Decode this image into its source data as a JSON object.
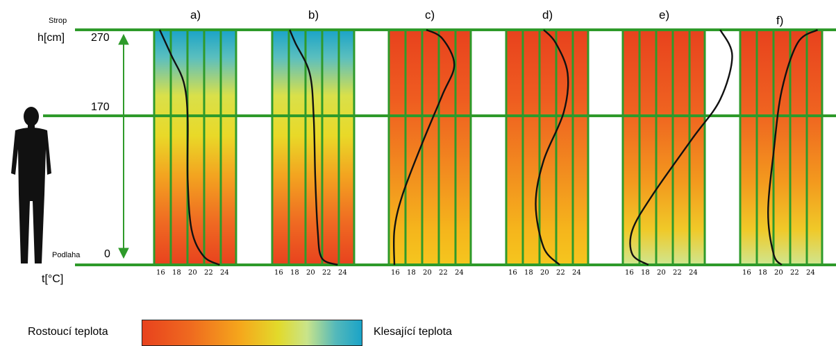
{
  "axis": {
    "ceiling_label": "Strop",
    "floor_label": "Podlaha",
    "height_label": "h[cm]",
    "temp_label": "t[°C]",
    "height_ticks": [
      "270",
      "170",
      "0"
    ]
  },
  "temp_ticks": [
    "16",
    "18",
    "20",
    "22",
    "24"
  ],
  "panels": [
    {
      "label": "a)",
      "gradient": "blue-top",
      "profile": [
        [
          23.5,
          0
        ],
        [
          21.5,
          10
        ],
        [
          20.0,
          40
        ],
        [
          19.5,
          100
        ],
        [
          19.5,
          170
        ],
        [
          19.0,
          210
        ],
        [
          17.5,
          240
        ],
        [
          16.0,
          270
        ]
      ]
    },
    {
      "label": "b)",
      "gradient": "blue-top",
      "profile": [
        [
          23.5,
          0
        ],
        [
          21.5,
          8
        ],
        [
          21.0,
          40
        ],
        [
          20.7,
          100
        ],
        [
          20.5,
          170
        ],
        [
          20.0,
          220
        ],
        [
          18.2,
          255
        ],
        [
          17.5,
          270
        ]
      ]
    },
    {
      "label": "c)",
      "gradient": "red-top",
      "profile": [
        [
          16.0,
          0
        ],
        [
          16.0,
          40
        ],
        [
          17.0,
          80
        ],
        [
          19.5,
          140
        ],
        [
          22.0,
          195
        ],
        [
          23.5,
          230
        ],
        [
          22.0,
          260
        ],
        [
          20.0,
          270
        ]
      ]
    },
    {
      "label": "d)",
      "gradient": "red-top",
      "profile": [
        [
          22.0,
          0
        ],
        [
          20.0,
          20
        ],
        [
          19.0,
          70
        ],
        [
          20.0,
          120
        ],
        [
          22.5,
          175
        ],
        [
          23.0,
          220
        ],
        [
          21.5,
          255
        ],
        [
          20.0,
          270
        ]
      ]
    },
    {
      "label": "e)",
      "gradient": "red-top",
      "profile": [
        [
          18.5,
          0
        ],
        [
          16.5,
          12
        ],
        [
          16.5,
          40
        ],
        [
          19.0,
          80
        ],
        [
          24.0,
          145
        ],
        [
          27.5,
          190
        ],
        [
          29.0,
          240
        ],
        [
          27.5,
          270
        ]
      ]
    },
    {
      "label": "f)",
      "gradient": "red-top",
      "profile": [
        [
          20.5,
          0
        ],
        [
          19.5,
          12
        ],
        [
          18.8,
          60
        ],
        [
          19.5,
          130
        ],
        [
          20.5,
          200
        ],
        [
          22.5,
          255
        ],
        [
          25.0,
          270
        ]
      ]
    }
  ],
  "legend": {
    "left_label": "Rostoucí teplota",
    "right_label": "Klesající teplota"
  }
}
